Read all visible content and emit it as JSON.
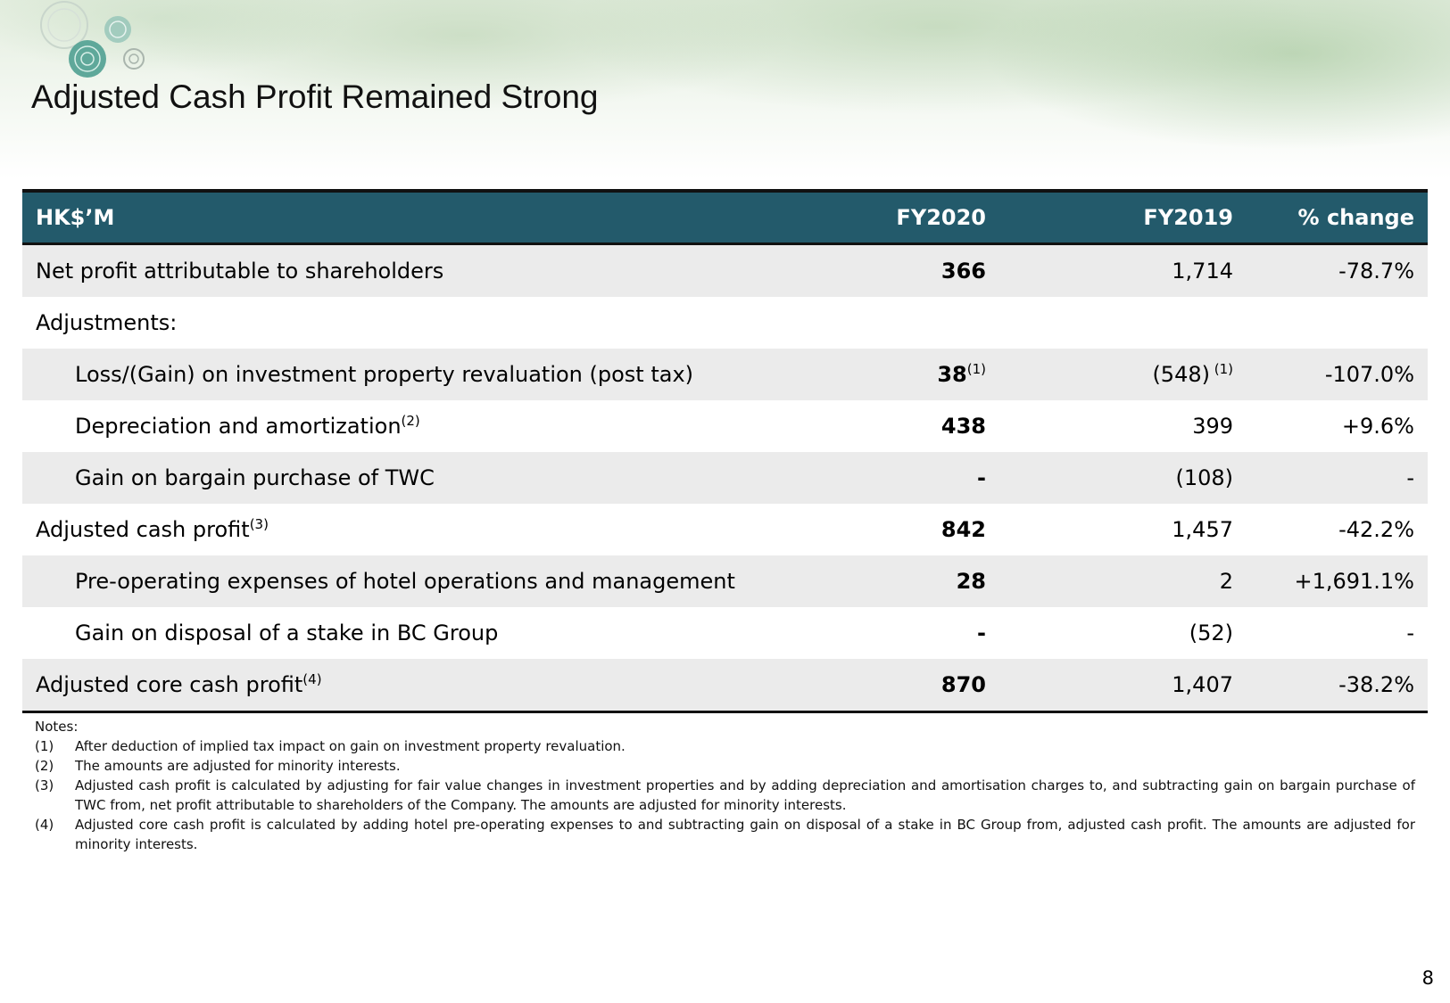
{
  "title": "Adjusted Cash Profit Remained Strong",
  "table": {
    "headers": [
      "HK$’M",
      "FY2020",
      "FY2019",
      "% change"
    ],
    "rows": [
      {
        "label": "Net profit attributable to shareholders",
        "sup": "",
        "fy2020": "366",
        "fy2020_sup": "",
        "fy2019": "1,714",
        "fy2019_sup": "",
        "change": "-78.7%"
      },
      {
        "label": "Adjustments:",
        "sup": "",
        "fy2020": "",
        "fy2020_sup": "",
        "fy2019": "",
        "fy2019_sup": "",
        "change": ""
      },
      {
        "label": "Loss/(Gain) on investment property revaluation (post tax)",
        "sup": "",
        "fy2020": "38",
        "fy2020_sup": "(1)",
        "fy2019": "(548)",
        "fy2019_sup": " (1)",
        "change": "-107.0%"
      },
      {
        "label": "Depreciation and amortization",
        "sup": "(2)",
        "fy2020": "438",
        "fy2020_sup": "",
        "fy2019": "399",
        "fy2019_sup": "",
        "change": "+9.6%"
      },
      {
        "label": "Gain on bargain purchase of TWC",
        "sup": "",
        "fy2020": "-",
        "fy2020_sup": "",
        "fy2019": "(108)",
        "fy2019_sup": "",
        "change": "-"
      },
      {
        "label": "Adjusted cash profit",
        "sup": "(3)",
        "fy2020": "842",
        "fy2020_sup": "",
        "fy2019": "1,457",
        "fy2019_sup": "",
        "change": "-42.2%"
      },
      {
        "label": "Pre-operating expenses of hotel operations and management",
        "sup": "",
        "fy2020": "28",
        "fy2020_sup": "",
        "fy2019": "2",
        "fy2019_sup": "",
        "change": "+1,691.1%"
      },
      {
        "label": "Gain on disposal of a stake in BC Group",
        "sup": "",
        "fy2020": "-",
        "fy2020_sup": "",
        "fy2019": "(52)",
        "fy2019_sup": "",
        "change": "-"
      },
      {
        "label": "Adjusted core cash profit",
        "sup": "(4)",
        "fy2020": "870",
        "fy2020_sup": "",
        "fy2019": "1,407",
        "fy2019_sup": "",
        "change": "-38.2%"
      }
    ]
  },
  "notes": {
    "heading": "Notes:",
    "items": [
      {
        "num": "(1)",
        "text": "After deduction of implied tax impact on gain on investment property revaluation."
      },
      {
        "num": "(2)",
        "text": "The amounts are adjusted for minority interests."
      },
      {
        "num": "(3)",
        "text": "Adjusted cash profit is calculated by adjusting for fair value changes in investment properties and by adding depreciation and amortisation charges to, and subtracting gain on bargain purchase of TWC from, net profit attributable to shareholders of the Company. The amounts are adjusted for minority interests."
      },
      {
        "num": "(4)",
        "text": "Adjusted core cash profit is calculated by adding hotel pre-operating expenses to and subtracting gain on disposal of a stake in BC Group from, adjusted cash profit. The amounts are adjusted for minority interests."
      }
    ]
  },
  "page_number": "8",
  "colors": {
    "header_bg": "#235a6b",
    "header_text": "#ffffff",
    "row_shade": "#ebebeb",
    "rule": "#111111"
  },
  "icons": {
    "logo": "tree-circles-logo"
  }
}
